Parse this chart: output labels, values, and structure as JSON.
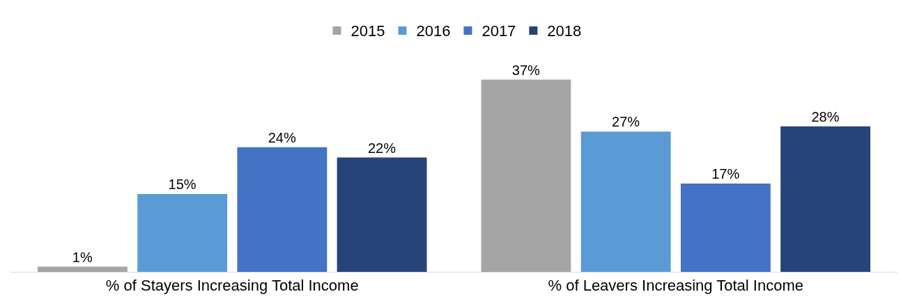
{
  "chart_data": {
    "type": "bar",
    "categories": [
      "% of Stayers Increasing Total Income",
      "% of Leavers Increasing Total Income"
    ],
    "series": [
      {
        "name": "2015",
        "color": "#a5a5a5",
        "values": [
          1,
          37
        ],
        "value_labels": [
          "1%",
          "37%"
        ]
      },
      {
        "name": "2016",
        "color": "#5b9bd5",
        "values": [
          15,
          27
        ],
        "value_labels": [
          "15%",
          "27%"
        ]
      },
      {
        "name": "2017",
        "color": "#4472c4",
        "values": [
          24,
          17
        ],
        "value_labels": [
          "24%",
          "17%"
        ]
      },
      {
        "name": "2018",
        "color": "#264478",
        "values": [
          22,
          28
        ],
        "value_labels": [
          "22%",
          "28%"
        ]
      }
    ],
    "tick_labels": "x",
    "grid": false,
    "legend": "top"
  }
}
